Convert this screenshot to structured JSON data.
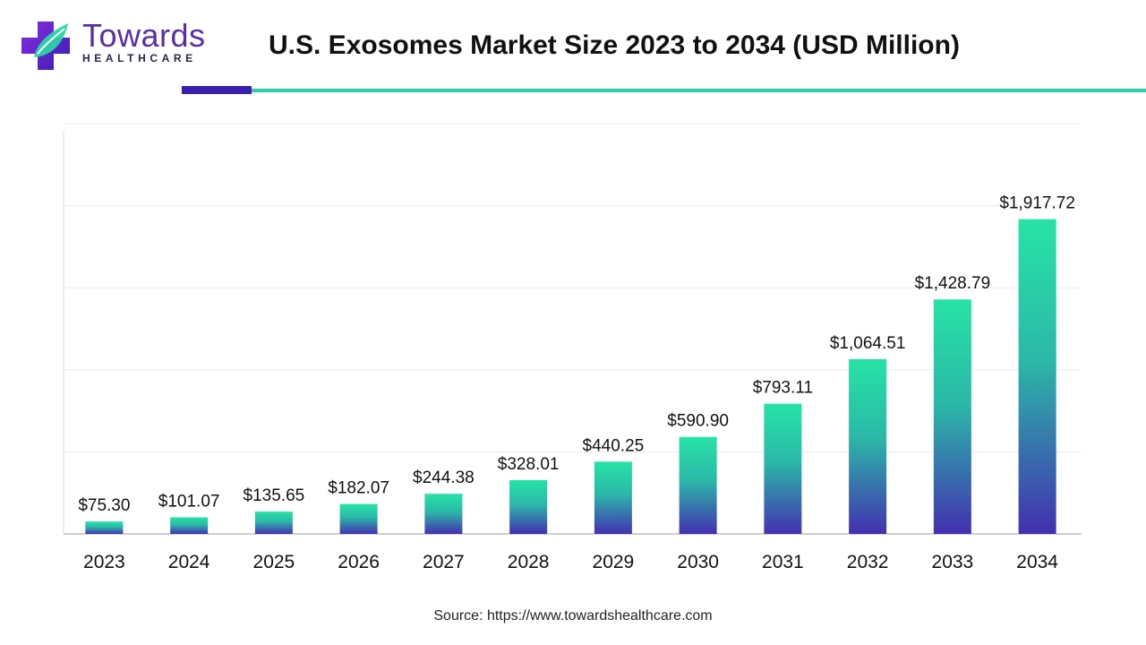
{
  "logo": {
    "name": "Towards",
    "sub": "HEALTHCARE",
    "icon": "medical-cross-leaf-icon",
    "primary_color": "#5a2ea6",
    "accent_color": "#2bd4a8"
  },
  "title": "U.S. Exosomes Market Size 2023 to 2034 (USD Million)",
  "source": "Source: https://www.towardshealthcare.com",
  "colors": {
    "bar_top": "#27e3a6",
    "bar_bottom": "#4330b0",
    "rule_dark": "#3a1fb0",
    "rule_green": "#2bd4a8"
  },
  "chart_data": {
    "type": "bar",
    "categories": [
      "2023",
      "2024",
      "2025",
      "2026",
      "2027",
      "2028",
      "2029",
      "2030",
      "2031",
      "2032",
      "2033",
      "2034"
    ],
    "values": [
      75.3,
      101.07,
      135.65,
      182.07,
      244.38,
      328.01,
      440.25,
      590.9,
      793.11,
      1064.51,
      1428.79,
      1917.72
    ],
    "labels": [
      "$75.30",
      "$101.07",
      "$135.65",
      "$182.07",
      "$244.38",
      "$328.01",
      "$440.25",
      "$590.90",
      "$793.11",
      "$1,064.51",
      "$1,428.79",
      "$1,917.72"
    ],
    "ylim": [
      0,
      2500
    ],
    "grid": true,
    "legend": "none"
  }
}
